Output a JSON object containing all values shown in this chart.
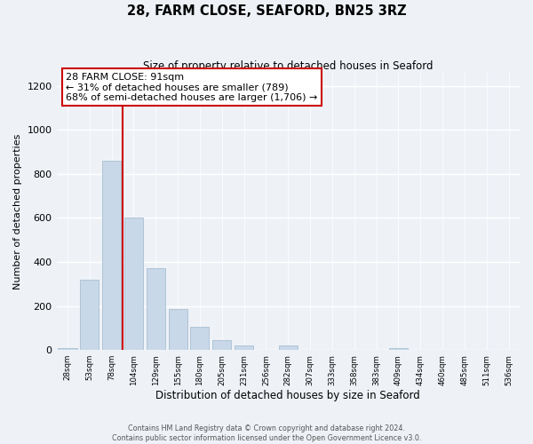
{
  "title": "28, FARM CLOSE, SEAFORD, BN25 3RZ",
  "subtitle": "Size of property relative to detached houses in Seaford",
  "xlabel": "Distribution of detached houses by size in Seaford",
  "ylabel": "Number of detached properties",
  "bar_labels": [
    "28sqm",
    "53sqm",
    "78sqm",
    "104sqm",
    "129sqm",
    "155sqm",
    "180sqm",
    "205sqm",
    "231sqm",
    "256sqm",
    "282sqm",
    "307sqm",
    "333sqm",
    "358sqm",
    "383sqm",
    "409sqm",
    "434sqm",
    "460sqm",
    "485sqm",
    "511sqm",
    "536sqm"
  ],
  "bar_values": [
    10,
    320,
    860,
    600,
    370,
    185,
    105,
    47,
    22,
    0,
    20,
    0,
    0,
    0,
    0,
    10,
    0,
    0,
    0,
    0,
    0
  ],
  "bar_color": "#c8d8e8",
  "bar_edge_color": "#a8bfd0",
  "vline_color": "#cc0000",
  "vline_x": 2.5,
  "ylim": [
    0,
    1260
  ],
  "yticks": [
    0,
    200,
    400,
    600,
    800,
    1000,
    1200
  ],
  "annotation_text": "28 FARM CLOSE: 91sqm\n← 31% of detached houses are smaller (789)\n68% of semi-detached houses are larger (1,706) →",
  "annotation_box_color": "#ffffff",
  "annotation_box_edge": "#cc0000",
  "footer_line1": "Contains HM Land Registry data © Crown copyright and database right 2024.",
  "footer_line2": "Contains public sector information licensed under the Open Government Licence v3.0.",
  "background_color": "#eef2f7",
  "grid_color": "#d8e0ec"
}
